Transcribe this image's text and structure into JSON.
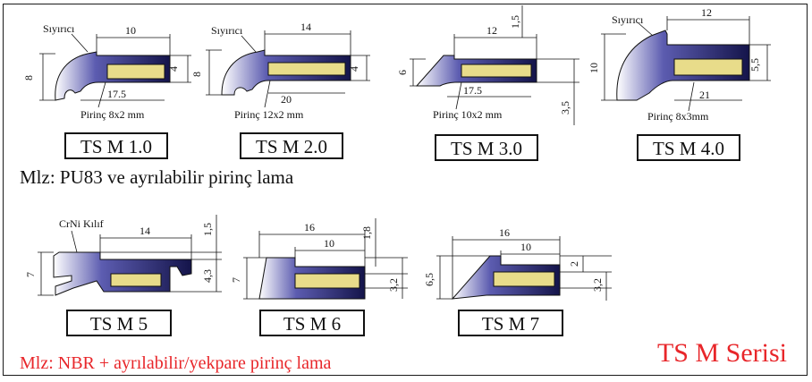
{
  "profiles": [
    {
      "code": "TS M 1.0",
      "label_wiper": "Sıyırıcı",
      "brass": "Pirinç 8x2 mm",
      "dims": [
        "10",
        "8",
        "4",
        "17.5"
      ]
    },
    {
      "code": "TS M 2.0",
      "label_wiper": "Sıyırıcı",
      "brass": "Pirinç 12x2 mm",
      "dims": [
        "14",
        "8",
        "4",
        "20"
      ]
    },
    {
      "code": "TS M 3.0",
      "brass": "Pirinç 10x2 mm",
      "dims": [
        "12",
        "1,5",
        "6",
        "17.5",
        "3,5"
      ]
    },
    {
      "code": "TS M 4.0",
      "label_wiper": "Sıyırıcı",
      "brass": "Pirinç 8x3mm",
      "dims": [
        "12",
        "10",
        "5,5",
        "21"
      ]
    },
    {
      "code": "TS M 5",
      "label_sheath": "CrNi Kılıf",
      "dims": [
        "14",
        "1,5",
        "7",
        "4,3"
      ]
    },
    {
      "code": "TS M 6",
      "dims": [
        "16",
        "10",
        "1,8",
        "7",
        "3,2"
      ]
    },
    {
      "code": "TS M 7",
      "dims": [
        "16",
        "10",
        "6,5",
        "2",
        "3,2"
      ]
    }
  ],
  "material_1": "Mlz:  PU83 ve ayrılabilir pirinç lama",
  "material_2": "Mlz:  NBR + ayrılabilir/yekpare pirinç lama",
  "series_title": "TS M Serisi",
  "colors": {
    "profile": "#3a3a8c",
    "brass": "#e8dc8a",
    "red": "#e8262a"
  }
}
